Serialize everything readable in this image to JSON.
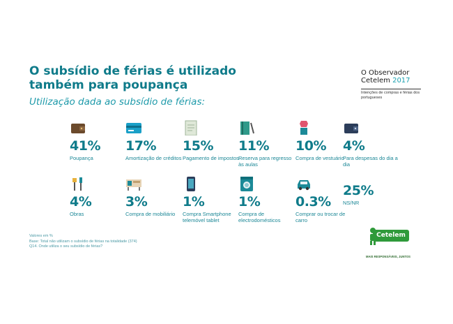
{
  "header": {
    "title": "O subsídio de férias é utilizado também para poupança",
    "subtitle": "Utilização dada ao subsídio de férias:"
  },
  "brand": {
    "line1": "O Observador",
    "line2_name": "Cetelem",
    "line2_year": "2017",
    "line3": "Intenções de compras e férias dos portugueses"
  },
  "chart_data": {
    "type": "table",
    "title": "O subsídio de férias é utilizado também para poupança",
    "subtitle": "Utilização dada ao subsídio de férias:",
    "unit": "%",
    "items": [
      {
        "label": "Poupança",
        "value": "41%",
        "icon": "wallet-icon"
      },
      {
        "label": "Amortização de créditos",
        "value": "17%",
        "icon": "credit-card-icon"
      },
      {
        "label": "Pagamento de impostos",
        "value": "15%",
        "icon": "tax-document-icon"
      },
      {
        "label": "Reserva para regresso às aulas",
        "value": "11%",
        "icon": "notebook-icon"
      },
      {
        "label": "Compra de vestuário",
        "value": "10%",
        "icon": "clothes-icon"
      },
      {
        "label": "Para despesas do dia a dia",
        "value": "4%",
        "icon": "wallet-dark-icon"
      },
      {
        "label": "Obras",
        "value": "4%",
        "icon": "tools-icon"
      },
      {
        "label": "Compra de mobiliário",
        "value": "3%",
        "icon": "furniture-icon"
      },
      {
        "label": "Compra Smartphone telemóvel tablet",
        "value": "1%",
        "icon": "smartphone-icon"
      },
      {
        "label": "Compra de electrodomésticos",
        "value": "1%",
        "icon": "washing-machine-icon"
      },
      {
        "label": "Comprar ou trocar de carro",
        "value": "0.3%",
        "icon": "car-icon"
      },
      {
        "label": "NS/NR",
        "value": "25%",
        "icon": ""
      }
    ]
  },
  "footnotes": {
    "line1": "Valores em %",
    "line2": "Base: Total não utilizam o subsídio de férias na totalidade (374)",
    "line3": "Q14. Onde utiliza o seu subsídio de férias?"
  },
  "logo": {
    "name": "Cetelem",
    "tagline": "MAIS RESPONSÁVEIS, JUNTOS"
  },
  "colors": {
    "primary": "#0f7b8a",
    "accent": "#1e9aaa",
    "logo_green": "#2f9a3a"
  }
}
